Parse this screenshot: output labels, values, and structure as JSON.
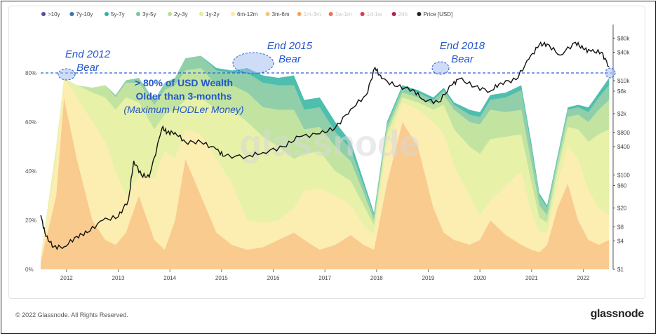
{
  "legend": [
    {
      "label": ">10y",
      "color": "#5b4a9e",
      "faded": false
    },
    {
      "label": "7y-10y",
      "color": "#3d6fb0",
      "faded": false
    },
    {
      "label": "5y-7y",
      "color": "#2fb3a0",
      "faded": false
    },
    {
      "label": "3y-5y",
      "color": "#7cc79a",
      "faded": false
    },
    {
      "label": "2y-3y",
      "color": "#b8df8f",
      "faded": false
    },
    {
      "label": "1y-2y",
      "color": "#e3ef99",
      "faded": false
    },
    {
      "label": "6m-12m",
      "color": "#fbeaa3",
      "faded": false
    },
    {
      "label": "3m-6m",
      "color": "#f8c27a",
      "faded": false
    },
    {
      "label": "1m-3m",
      "color": "#f5a25e",
      "faded": true
    },
    {
      "label": "1w-1m",
      "color": "#ee6f57",
      "faded": true
    },
    {
      "label": "1d-1w",
      "color": "#dc3b4b",
      "faded": true
    },
    {
      "label": "24h",
      "color": "#b01e4f",
      "faded": true
    },
    {
      "label": "Price [USD]",
      "color": "#222222",
      "faded": false
    }
  ],
  "watermark": "glassnode",
  "annotations": {
    "bear_2012": [
      "End 2012",
      "Bear"
    ],
    "bear_2015": [
      "End 2015",
      "Bear"
    ],
    "bear_2018": [
      "End 2018",
      "Bear"
    ],
    "hodl_title": [
      "> 80% of USD Wealth",
      "Older than 3-months"
    ],
    "hodl_sub": "(Maximum HODLer Money)"
  },
  "footer": {
    "copyright": "© 2022 Glassnode. All Rights Reserved.",
    "logo": "glassnode"
  },
  "chart_data": {
    "type": "area",
    "x_ticks": [
      "2012",
      "2013",
      "2014",
      "2015",
      "2016",
      "2017",
      "2018",
      "2019",
      "2020",
      "2021",
      "2022"
    ],
    "y_left_ticks": [
      "0%",
      "20%",
      "40%",
      "60%",
      "80%"
    ],
    "y_left_range": [
      0,
      100
    ],
    "y_right_ticks": [
      "$1",
      "$4",
      "$8",
      "$20",
      "$60",
      "$100",
      "$400",
      "$800",
      "$2k",
      "$6k",
      "$10k",
      "$40k",
      "$80k"
    ],
    "y_right_scale": "log",
    "y_right_range": [
      1,
      150000
    ],
    "reference_line": 80,
    "stack_order": [
      "3m-6m",
      "6m-12m",
      "1y-2y",
      "2y-3y",
      "3y-5y",
      "5y-7y"
    ],
    "x": [
      2011.5,
      2011.8,
      2011.95,
      2012.2,
      2012.5,
      2012.75,
      2012.95,
      2013.15,
      2013.4,
      2013.7,
      2013.9,
      2014.1,
      2014.3,
      2014.6,
      2014.9,
      2015.2,
      2015.5,
      2015.8,
      2016.1,
      2016.4,
      2016.6,
      2016.9,
      2017.2,
      2017.5,
      2017.75,
      2017.95,
      2018.2,
      2018.5,
      2018.8,
      2019.1,
      2019.3,
      2019.5,
      2019.8,
      2020.0,
      2020.2,
      2020.5,
      2020.8,
      2021.0,
      2021.15,
      2021.3,
      2021.5,
      2021.7,
      2021.9,
      2022.1,
      2022.3,
      2022.5
    ],
    "series": [
      {
        "name": "3m-6m",
        "values": [
          3,
          30,
          70,
          45,
          20,
          12,
          10,
          15,
          30,
          12,
          8,
          20,
          45,
          30,
          15,
          10,
          8,
          9,
          12,
          15,
          12,
          8,
          10,
          14,
          10,
          8,
          35,
          60,
          50,
          25,
          15,
          12,
          10,
          12,
          20,
          14,
          10,
          8,
          7,
          10,
          25,
          35,
          20,
          12,
          10,
          12
        ]
      },
      {
        "name": "6m-12m",
        "values": [
          2,
          15,
          8,
          25,
          40,
          40,
          30,
          15,
          8,
          25,
          40,
          25,
          12,
          25,
          30,
          25,
          12,
          10,
          8,
          10,
          20,
          25,
          20,
          12,
          8,
          6,
          15,
          8,
          15,
          35,
          40,
          30,
          20,
          10,
          8,
          20,
          30,
          15,
          8,
          5,
          10,
          15,
          25,
          20,
          15,
          10
        ]
      },
      {
        "name": "1y-2y",
        "values": [
          0,
          5,
          0,
          5,
          12,
          18,
          25,
          40,
          30,
          20,
          15,
          20,
          12,
          15,
          20,
          30,
          40,
          35,
          30,
          20,
          15,
          15,
          10,
          10,
          8,
          4,
          5,
          2,
          3,
          5,
          12,
          15,
          20,
          25,
          25,
          20,
          15,
          12,
          6,
          4,
          5,
          8,
          12,
          20,
          30,
          35
        ]
      },
      {
        "name": "2y-3y",
        "values": [
          0,
          0,
          0,
          0,
          2,
          5,
          5,
          6,
          8,
          10,
          10,
          10,
          12,
          12,
          10,
          10,
          12,
          12,
          15,
          20,
          10,
          10,
          10,
          8,
          5,
          2,
          2,
          2,
          2,
          2,
          4,
          8,
          10,
          12,
          12,
          10,
          10,
          8,
          5,
          3,
          3,
          4,
          6,
          8,
          10,
          12
        ]
      },
      {
        "name": "3y-5y",
        "values": [
          0,
          0,
          0,
          0,
          0,
          0,
          1,
          1,
          2,
          2,
          3,
          3,
          5,
          5,
          6,
          5,
          8,
          10,
          10,
          10,
          8,
          8,
          6,
          5,
          3,
          2,
          2,
          2,
          2,
          2,
          2,
          2,
          3,
          3,
          4,
          6,
          8,
          6,
          4,
          3,
          2,
          3,
          3,
          4,
          5,
          6
        ]
      },
      {
        "name": "5y-7y",
        "values": [
          0,
          0,
          0,
          0,
          0,
          0,
          0,
          0,
          0,
          0,
          0,
          0,
          0,
          0,
          1,
          1,
          2,
          3,
          3,
          4,
          4,
          4,
          4,
          3,
          2,
          1,
          1,
          1,
          1,
          1,
          1,
          1,
          2,
          2,
          2,
          2,
          2,
          2,
          1,
          1,
          1,
          1,
          1,
          2,
          2,
          3
        ]
      },
      {
        "name": "Price [USD]",
        "x": [
          2011.5,
          2011.6,
          2011.75,
          2011.95,
          2012.2,
          2012.4,
          2012.7,
          2013.0,
          2013.2,
          2013.3,
          2013.45,
          2013.6,
          2013.85,
          2013.95,
          2014.1,
          2014.3,
          2014.6,
          2014.9,
          2015.05,
          2015.5,
          2015.8,
          2016.2,
          2016.5,
          2016.9,
          2017.2,
          2017.5,
          2017.8,
          2017.97,
          2018.1,
          2018.4,
          2018.7,
          2018.9,
          2019.2,
          2019.45,
          2019.6,
          2019.9,
          2020.2,
          2020.4,
          2020.7,
          2020.95,
          2021.15,
          2021.3,
          2021.55,
          2021.85,
          2022.0,
          2022.15,
          2022.35,
          2022.5
        ],
        "values": [
          14,
          5,
          3,
          3,
          5,
          6,
          11,
          13,
          30,
          200,
          100,
          90,
          1000,
          800,
          800,
          500,
          500,
          350,
          250,
          250,
          300,
          400,
          650,
          750,
          1000,
          2500,
          5000,
          19000,
          11000,
          7500,
          6500,
          4000,
          3500,
          8000,
          11000,
          7500,
          6000,
          9000,
          10500,
          29000,
          58000,
          60000,
          35000,
          65000,
          47000,
          42000,
          40000,
          20000
        ]
      }
    ]
  }
}
